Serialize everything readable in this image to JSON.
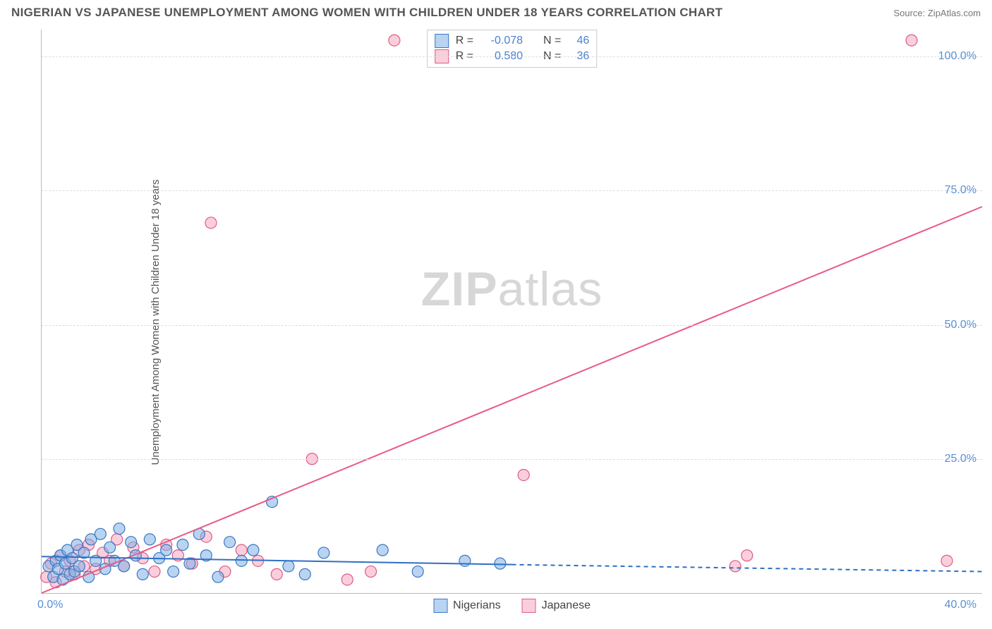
{
  "title": "NIGERIAN VS JAPANESE UNEMPLOYMENT AMONG WOMEN WITH CHILDREN UNDER 18 YEARS CORRELATION CHART",
  "source": "Source: ZipAtlas.com",
  "ylabel": "Unemployment Among Women with Children Under 18 years",
  "watermark_zip": "ZIP",
  "watermark_atlas": "atlas",
  "chart": {
    "type": "scatter",
    "xlim": [
      0,
      40
    ],
    "ylim": [
      0,
      105
    ],
    "x_min_label": "0.0%",
    "x_max_label": "40.0%",
    "yticks": [
      25.0,
      50.0,
      75.0,
      100.0
    ],
    "ytick_labels": [
      "25.0%",
      "50.0%",
      "75.0%",
      "100.0%"
    ],
    "grid_color": "#dddddd",
    "axis_color": "#bbbbbb",
    "background_color": "#ffffff",
    "tick_label_color": "#5a8fd6",
    "series": [
      {
        "name": "Nigerians",
        "fill": "#7fb0e6",
        "fill_opacity": 0.55,
        "stroke": "#3d77c2",
        "marker_radius": 8,
        "R_label": "R =",
        "R": "-0.078",
        "N_label": "N =",
        "N": "46",
        "regression": {
          "x1": 0,
          "y1": 6.8,
          "x2": 20,
          "y2": 5.3,
          "extend_x2": 40,
          "extend_y2": 4.0,
          "color": "#2f6fc5",
          "width": 2,
          "dash_extend": "6,5"
        },
        "points": [
          [
            0.3,
            5.0
          ],
          [
            0.5,
            3.0
          ],
          [
            0.6,
            6.0
          ],
          [
            0.7,
            4.5
          ],
          [
            0.8,
            7.0
          ],
          [
            0.9,
            2.5
          ],
          [
            1.0,
            5.5
          ],
          [
            1.1,
            8.0
          ],
          [
            1.2,
            3.5
          ],
          [
            1.3,
            6.5
          ],
          [
            1.4,
            4.0
          ],
          [
            1.5,
            9.0
          ],
          [
            1.6,
            5.0
          ],
          [
            1.8,
            7.5
          ],
          [
            2.0,
            3.0
          ],
          [
            2.1,
            10.0
          ],
          [
            2.3,
            6.0
          ],
          [
            2.5,
            11.0
          ],
          [
            2.7,
            4.5
          ],
          [
            2.9,
            8.5
          ],
          [
            3.1,
            6.0
          ],
          [
            3.3,
            12.0
          ],
          [
            3.5,
            5.0
          ],
          [
            3.8,
            9.5
          ],
          [
            4.0,
            7.0
          ],
          [
            4.3,
            3.5
          ],
          [
            4.6,
            10.0
          ],
          [
            5.0,
            6.5
          ],
          [
            5.3,
            8.0
          ],
          [
            5.6,
            4.0
          ],
          [
            6.0,
            9.0
          ],
          [
            6.3,
            5.5
          ],
          [
            6.7,
            11.0
          ],
          [
            7.0,
            7.0
          ],
          [
            7.5,
            3.0
          ],
          [
            8.0,
            9.5
          ],
          [
            8.5,
            6.0
          ],
          [
            9.0,
            8.0
          ],
          [
            9.8,
            17.0
          ],
          [
            10.5,
            5.0
          ],
          [
            11.2,
            3.5
          ],
          [
            12.0,
            7.5
          ],
          [
            14.5,
            8.0
          ],
          [
            16.0,
            4.0
          ],
          [
            18.0,
            6.0
          ],
          [
            19.5,
            5.5
          ]
        ]
      },
      {
        "name": "Japanese",
        "fill": "#f5a8bd",
        "fill_opacity": 0.55,
        "stroke": "#e05a86",
        "marker_radius": 8,
        "R_label": "R =",
        "R": "0.580",
        "N_label": "N =",
        "N": "36",
        "regression": {
          "x1": 0,
          "y1": 0,
          "x2": 40,
          "y2": 72,
          "color": "#e85a86",
          "width": 2
        },
        "points": [
          [
            0.2,
            3.0
          ],
          [
            0.4,
            5.5
          ],
          [
            0.6,
            2.0
          ],
          [
            0.8,
            7.0
          ],
          [
            1.0,
            4.0
          ],
          [
            1.2,
            6.0
          ],
          [
            1.4,
            3.5
          ],
          [
            1.6,
            8.0
          ],
          [
            1.8,
            5.0
          ],
          [
            2.0,
            9.0
          ],
          [
            2.3,
            4.5
          ],
          [
            2.6,
            7.5
          ],
          [
            2.9,
            6.0
          ],
          [
            3.2,
            10.0
          ],
          [
            3.5,
            5.0
          ],
          [
            3.9,
            8.5
          ],
          [
            4.3,
            6.5
          ],
          [
            4.8,
            4.0
          ],
          [
            5.3,
            9.0
          ],
          [
            5.8,
            7.0
          ],
          [
            6.4,
            5.5
          ],
          [
            7.0,
            10.5
          ],
          [
            7.2,
            69.0
          ],
          [
            7.8,
            4.0
          ],
          [
            8.5,
            8.0
          ],
          [
            9.2,
            6.0
          ],
          [
            10.0,
            3.5
          ],
          [
            11.5,
            25.0
          ],
          [
            13.0,
            2.5
          ],
          [
            14.0,
            4.0
          ],
          [
            15.0,
            103.0
          ],
          [
            20.5,
            22.0
          ],
          [
            29.5,
            5.0
          ],
          [
            30.0,
            7.0
          ],
          [
            37.0,
            103.0
          ],
          [
            38.5,
            6.0
          ]
        ]
      }
    ]
  },
  "legend_top": {
    "border_color": "#cccccc"
  },
  "legend_bottom_labels": [
    "Nigerians",
    "Japanese"
  ]
}
